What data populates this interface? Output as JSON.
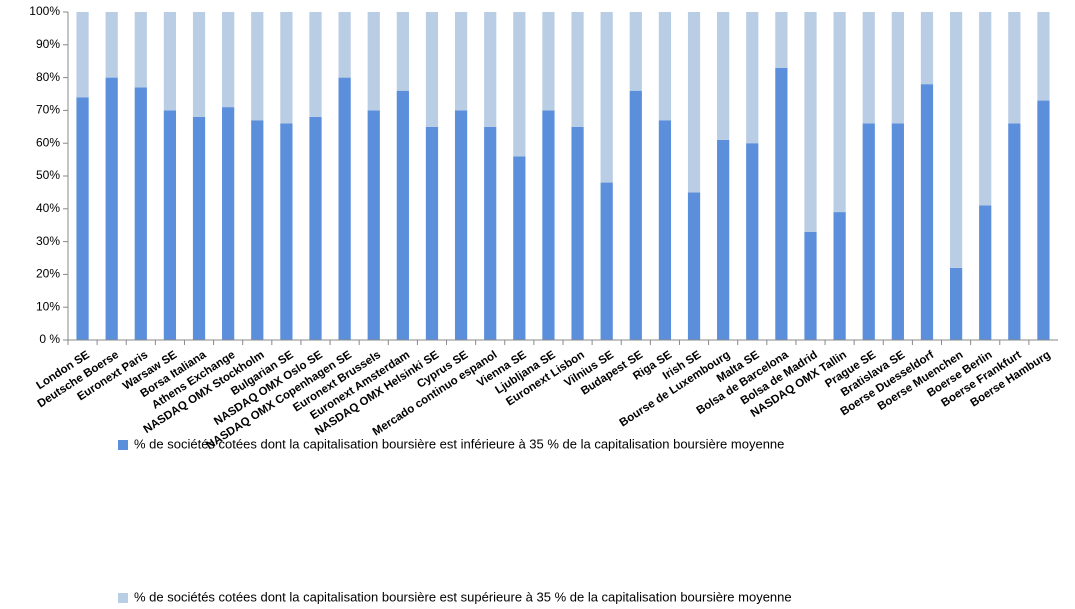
{
  "chart_data": {
    "type": "bar",
    "stacked": true,
    "categories": [
      "London SE",
      "Deutsche Boerse",
      "Euronext Paris",
      "Warsaw SE",
      "Borsa Italiana",
      "Athens Exchange",
      "NASDAQ OMX  Stockholm",
      "Bulgarian SE",
      "NASDAQ OMX  Oslo  SE",
      "NASDAQ OMX  Copenhagen SE",
      "Euronext Brussels",
      "Euronext Amsterdam",
      "NASDAQ OMX Helsinki SE",
      "Cyprus SE",
      "Mercado continuo espanol",
      "Vienna SE",
      "Ljubljana SE",
      "Euronext Lisbon",
      "Vilnius SE",
      "Budapest SE",
      "Riga SE",
      "Irish SE",
      "Bourse de Luxembourg",
      "Malta SE",
      "Bolsa de Barcelona",
      "Bolsa de Madrid",
      "NASDAQ OMX  Tallin",
      "Prague SE",
      "Bratislava SE",
      "Boerse Duesseldorf",
      "Boerse Muenchen",
      "Boerse Berlin",
      "Boerse Frankfurt",
      "Boerse Hamburg"
    ],
    "series": [
      {
        "name": "% de sociétés cotées dont la capitalisation boursière est inférieure à 35 % de la capitalisation boursière moyenne",
        "color": "#5b8fdc",
        "values": [
          74,
          80,
          77,
          70,
          68,
          71,
          67,
          66,
          68,
          80,
          70,
          76,
          65,
          70,
          65,
          56,
          70,
          65,
          48,
          76,
          67,
          45,
          61,
          60,
          83,
          33,
          39,
          66,
          66,
          78,
          22,
          41,
          66,
          73
        ]
      },
      {
        "name": "% de sociétés cotées dont la capitalisation boursière est supérieure à 35 % de la capitalisation boursière moyenne",
        "color": "#b9cde5",
        "values": [
          26,
          20,
          23,
          30,
          32,
          29,
          33,
          34,
          32,
          20,
          30,
          24,
          35,
          30,
          35,
          44,
          30,
          35,
          52,
          24,
          33,
          55,
          39,
          40,
          17,
          67,
          61,
          34,
          34,
          22,
          78,
          59,
          34,
          27
        ]
      }
    ],
    "ylim": [
      0,
      100
    ],
    "yticks": [
      {
        "value": 0,
        "label": "0 %"
      },
      {
        "value": 10,
        "label": "10%"
      },
      {
        "value": 20,
        "label": "20%"
      },
      {
        "value": 30,
        "label": "30%"
      },
      {
        "value": 40,
        "label": "40%"
      },
      {
        "value": 50,
        "label": "50%"
      },
      {
        "value": 60,
        "label": "60%"
      },
      {
        "value": 70,
        "label": "70%"
      },
      {
        "value": 80,
        "label": "80%"
      },
      {
        "value": 90,
        "label": "90%"
      },
      {
        "value": 100,
        "label": "100%"
      }
    ],
    "grid": false,
    "legend": "bottom"
  }
}
